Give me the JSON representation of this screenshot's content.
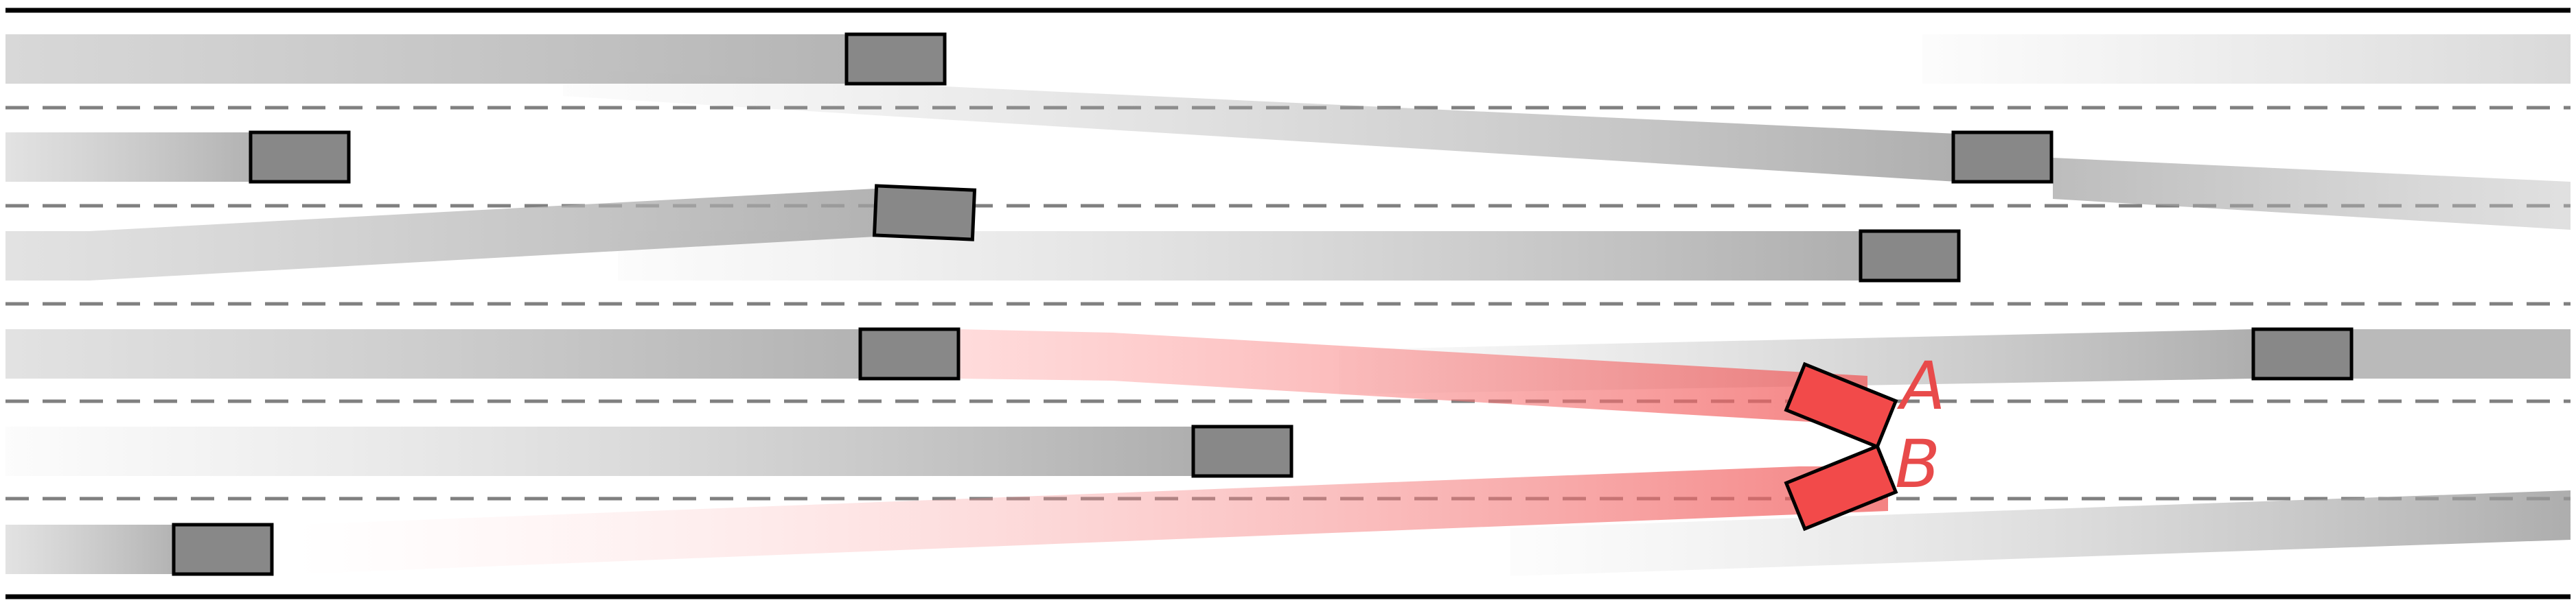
{
  "scene": {
    "lane_count": 6,
    "colors": {
      "road_edge": "#000000",
      "lane_marking": "#808080",
      "background": "#ffffff",
      "vehicle_fill": "#888888",
      "vehicle_outline": "#000000",
      "ego_fill": "#f24a4a",
      "ego_trail": "#ff8080",
      "trail": "#a0a0a0",
      "label": "#e84a4a"
    }
  },
  "labels": {
    "a": "A",
    "b": "B"
  }
}
